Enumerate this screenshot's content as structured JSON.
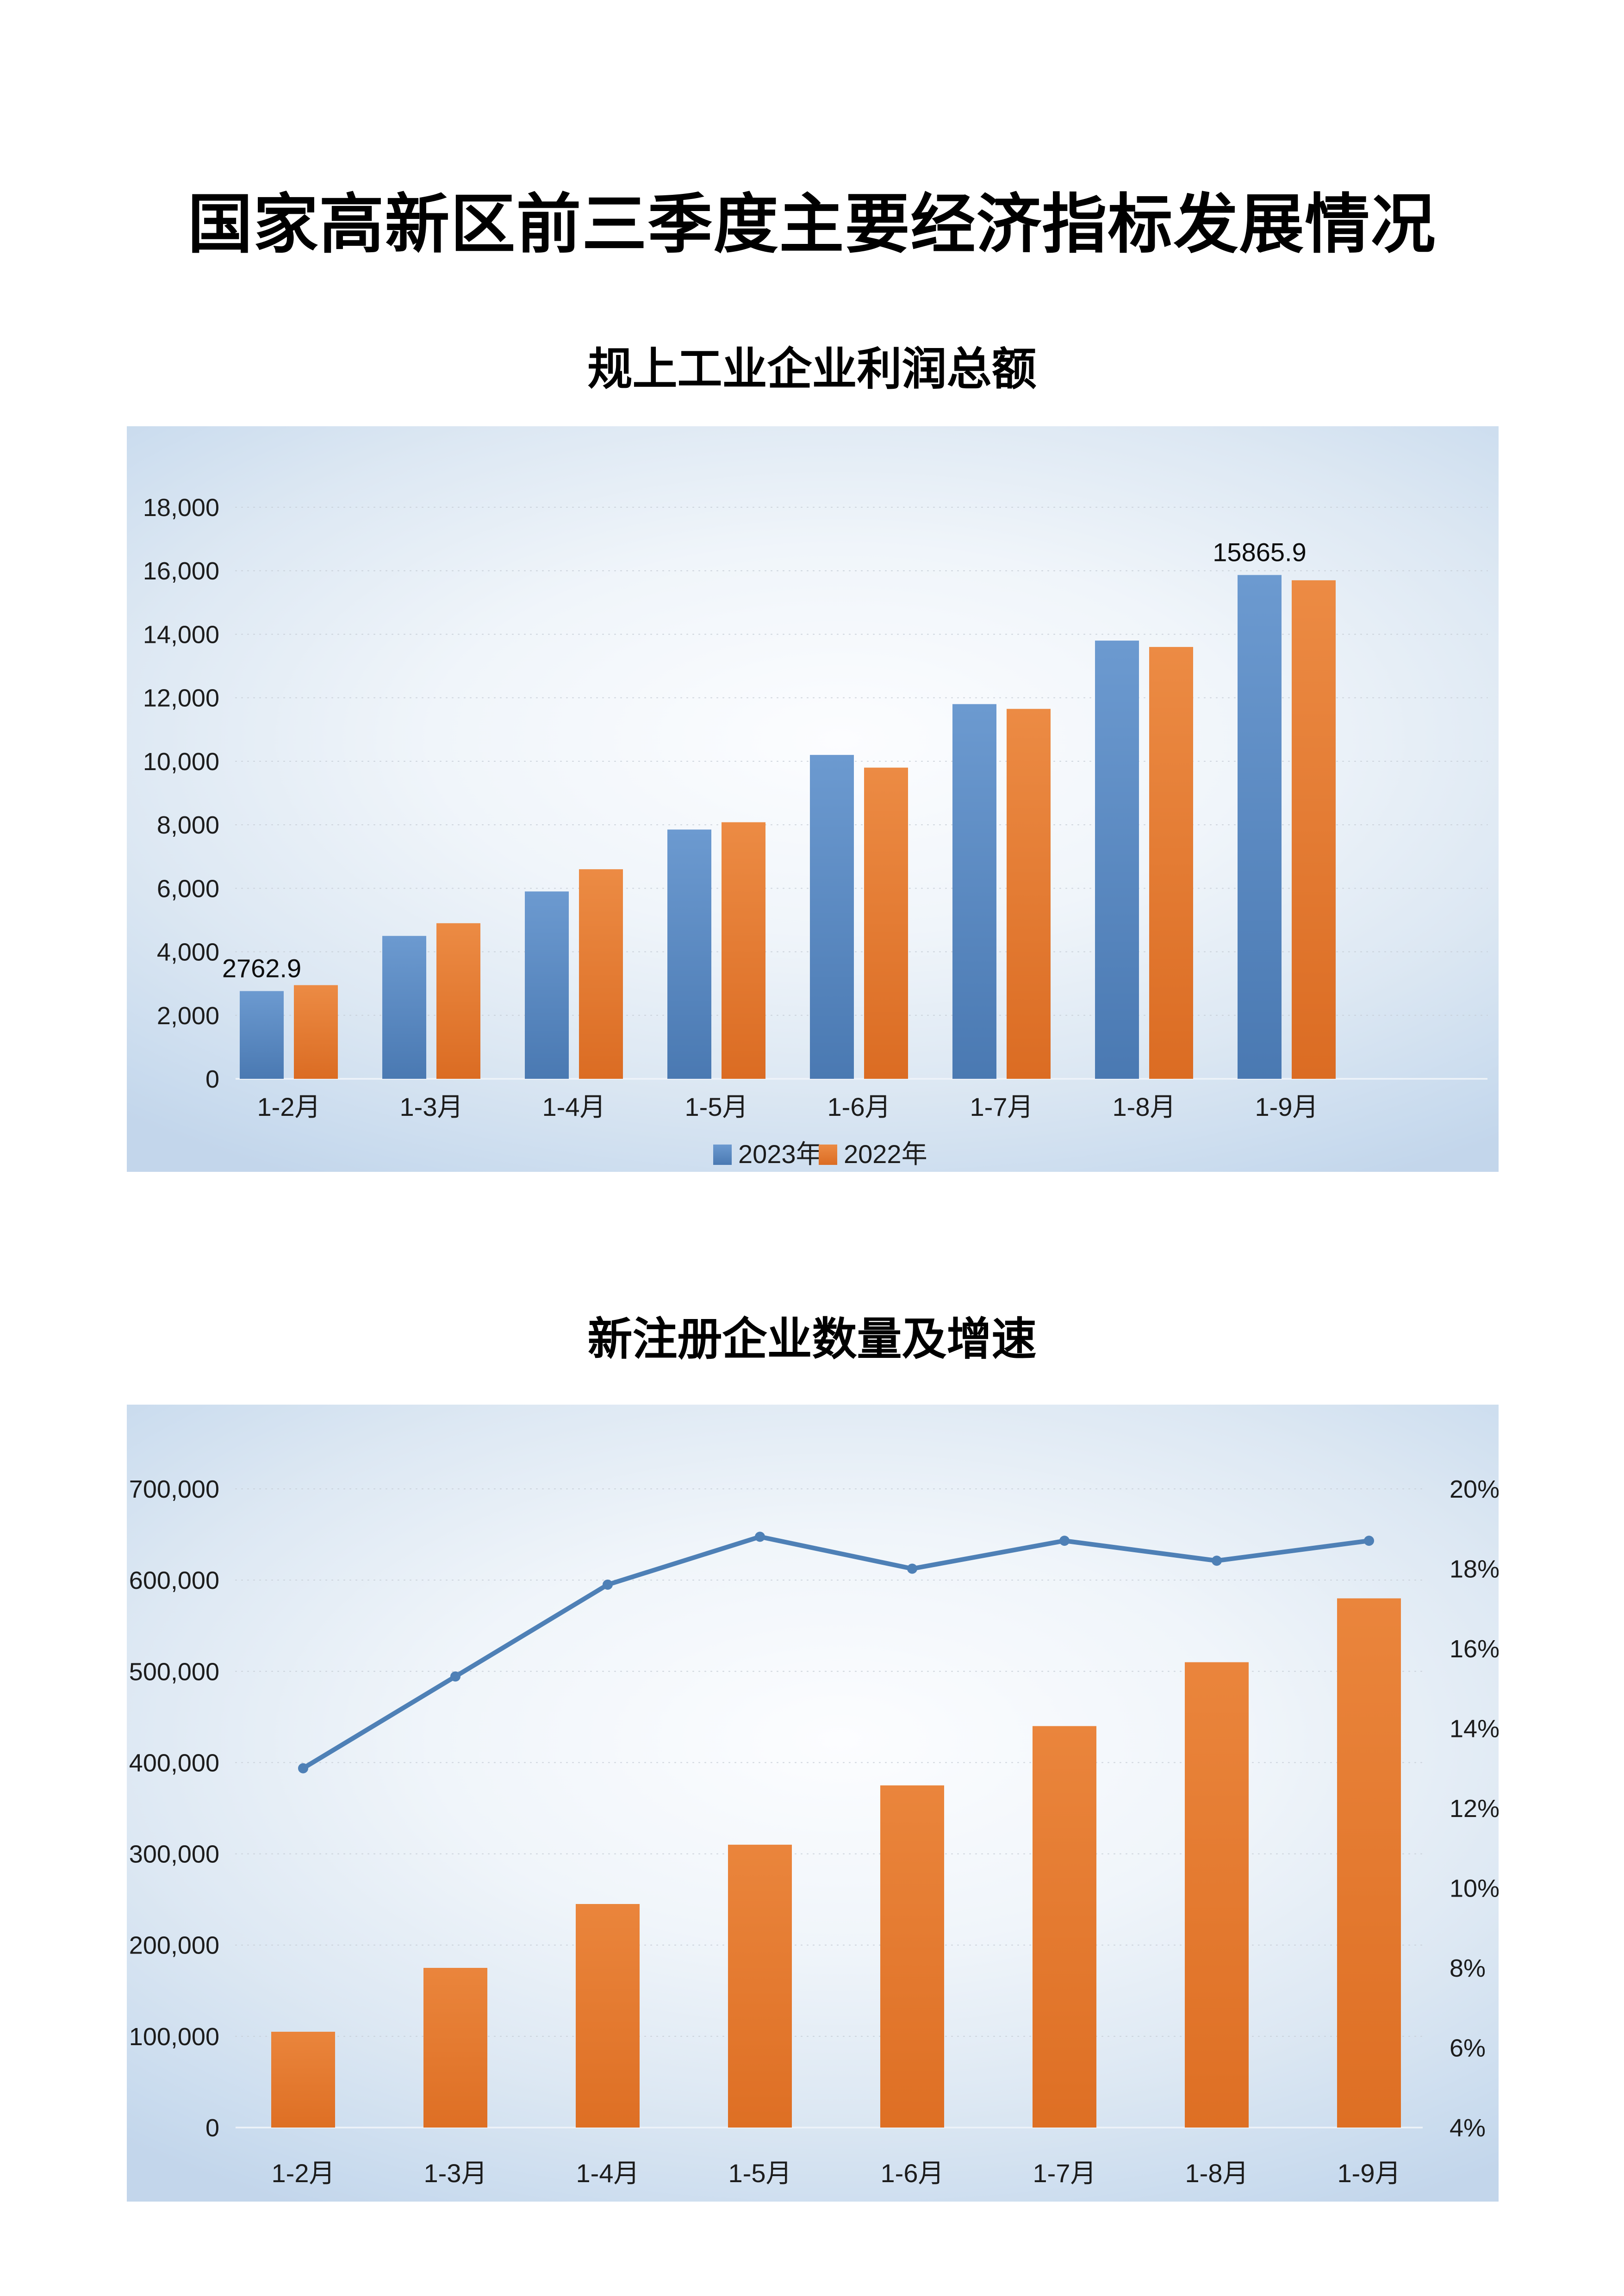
{
  "page": {
    "title": "国家高新区前三季度主要经济指标发展情况"
  },
  "chart_data": [
    {
      "type": "bar",
      "title": "规上工业企业利润总额",
      "categories": [
        "1-2月",
        "1-3月",
        "1-4月",
        "1-5月",
        "1-6月",
        "1-7月",
        "1-8月",
        "1-9月"
      ],
      "series": [
        {
          "name": "2023年",
          "color": "#4E7FB5",
          "values": [
            2762.9,
            4500,
            5900,
            7850,
            10200,
            11800,
            13800,
            15865.9
          ]
        },
        {
          "name": "2022年",
          "color": "#DD6E26",
          "values": [
            2950,
            4900,
            6600,
            8080,
            9800,
            11650,
            13600,
            15700
          ]
        }
      ],
      "data_labels": [
        {
          "series": 0,
          "index": 0,
          "text": "2762.9"
        },
        {
          "series": 0,
          "index": 7,
          "text": "15865.9"
        }
      ],
      "y_axis": {
        "min": 0,
        "max": 18000,
        "step": 2000,
        "tick_labels": [
          "0",
          "2,000",
          "4,000",
          "6,000",
          "8,000",
          "10,000",
          "12,000",
          "14,000",
          "16,000",
          "18,000"
        ]
      },
      "legend": {
        "position": "bottom",
        "entries": [
          "2023年",
          "2022年"
        ]
      },
      "grid": true
    },
    {
      "type": "combo-bar-line",
      "title": "新注册企业数量及增速",
      "categories": [
        "1-2月",
        "1-3月",
        "1-4月",
        "1-5月",
        "1-6月",
        "1-7月",
        "1-8月",
        "1-9月"
      ],
      "bar_series": {
        "axis": "left",
        "color": "#E2751F",
        "values": [
          105000,
          175000,
          245000,
          310000,
          375000,
          440000,
          510000,
          580000
        ]
      },
      "line_series": {
        "axis": "right",
        "color": "#4E80B6",
        "values_percent": [
          13.0,
          15.3,
          17.6,
          18.8,
          18.0,
          18.7,
          18.2,
          18.7
        ]
      },
      "left_axis": {
        "min": 0,
        "max": 700000,
        "step": 100000,
        "tick_labels": [
          "0",
          "100,000",
          "200,000",
          "300,000",
          "400,000",
          "500,000",
          "600,000",
          "700,000"
        ]
      },
      "right_axis": {
        "min": 4,
        "max": 20,
        "step": 2,
        "tick_labels": [
          "4%",
          "6%",
          "8%",
          "10%",
          "12%",
          "14%",
          "16%",
          "18%",
          "20%"
        ]
      },
      "legend": null,
      "grid": true
    }
  ]
}
